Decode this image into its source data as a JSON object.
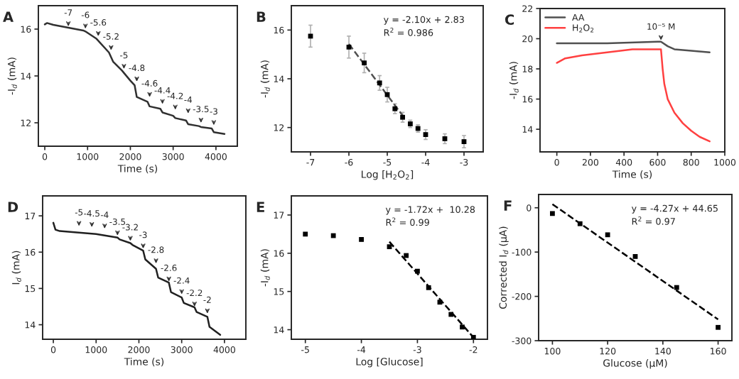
{
  "chart_data": [
    {
      "type": "line",
      "title": "A",
      "xlabel": "Time (s)",
      "ylabel": "-I$_{d}$ (mA)",
      "xlim": [
        -150,
        4500
      ],
      "ylim": [
        11,
        17
      ],
      "xticks": [
        0,
        1000,
        2000,
        3000,
        4000
      ],
      "yticks": [
        12,
        14,
        16
      ],
      "series": [
        {
          "color": "#303030",
          "x": [
            0,
            50,
            200,
            900,
            950,
            1200,
            1500,
            1600,
            1800,
            2000,
            2100,
            2150,
            2400,
            2450,
            2700,
            2750,
            3000,
            3050,
            3300,
            3350,
            3600,
            3650,
            3900,
            3950,
            4200
          ],
          "values": [
            16.2,
            16.26,
            16.18,
            15.94,
            15.9,
            15.6,
            15.0,
            14.6,
            14.24,
            13.8,
            13.6,
            13.1,
            12.9,
            12.7,
            12.6,
            12.44,
            12.3,
            12.2,
            12.1,
            11.94,
            11.86,
            11.82,
            11.76,
            11.6,
            11.52
          ]
        }
      ],
      "annotations": [
        {
          "text": "-7",
          "x": 550,
          "y": 16.12
        },
        {
          "text": "-6",
          "x": 950,
          "y": 16.02
        },
        {
          "text": "-5.6",
          "x": 1250,
          "y": 15.7
        },
        {
          "text": "-5.2",
          "x": 1550,
          "y": 15.1
        },
        {
          "text": "-5",
          "x": 1850,
          "y": 14.3
        },
        {
          "text": "-4.8",
          "x": 2150,
          "y": 13.76
        },
        {
          "text": "-4.6",
          "x": 2450,
          "y": 13.1
        },
        {
          "text": "-4.4",
          "x": 2750,
          "y": 12.8
        },
        {
          "text": "-4.2",
          "x": 3050,
          "y": 12.56
        },
        {
          "text": "-4",
          "x": 3350,
          "y": 12.4
        },
        {
          "text": "-3.5",
          "x": 3650,
          "y": 12.0
        },
        {
          "text": "-3",
          "x": 3950,
          "y": 11.9
        }
      ]
    },
    {
      "type": "scatter",
      "title": "B",
      "xlabel": "Log [H$_{2}$O$_{2}$]",
      "ylabel": "-I$_{d}$ (mA)",
      "xlim": [
        -7.5,
        -2.5
      ],
      "ylim": [
        11,
        17
      ],
      "xticks": [
        -7,
        -6,
        -5,
        -4,
        -3
      ],
      "yticks": [
        12,
        14,
        16
      ],
      "series": [
        {
          "color": "#000000",
          "marker": "square",
          "x": [
            -7,
            -6,
            -5.6,
            -5.2,
            -5,
            -4.8,
            -4.6,
            -4.4,
            -4.2,
            -4,
            -3.5,
            -3
          ],
          "values": [
            15.75,
            15.3,
            14.65,
            13.83,
            13.35,
            12.77,
            12.42,
            12.15,
            11.96,
            11.71,
            11.54,
            11.42
          ],
          "errors": [
            0.45,
            0.45,
            0.4,
            0.3,
            0.3,
            0.2,
            0.2,
            0.15,
            0.15,
            0.2,
            0.2,
            0.25
          ]
        },
        {
          "type": "line",
          "color": "#505050",
          "line_style": "dashed",
          "x": [
            -6,
            -4.6
          ],
          "values": [
            15.43,
            12.49
          ]
        }
      ],
      "annotations": [
        "y = -2.10x + 2.83",
        "R$^{2}$ = 0.986"
      ]
    },
    {
      "type": "line",
      "title": "C",
      "xlabel": "Time (s)",
      "ylabel": "-I$_{d}$ (mA)",
      "xlim": [
        -100,
        1000
      ],
      "ylim": [
        12.5,
        22
      ],
      "xticks": [
        0,
        200,
        400,
        600,
        800,
        1000
      ],
      "yticks": [
        14,
        16,
        18,
        20,
        22
      ],
      "legend": "top left",
      "series": [
        {
          "name": "AA",
          "color": "#505050",
          "x": [
            0,
            300,
            600,
            620,
            660,
            700,
            800,
            910
          ],
          "values": [
            19.7,
            19.7,
            19.8,
            19.8,
            19.5,
            19.3,
            19.2,
            19.1
          ]
        },
        {
          "name": "H$_{2}$O$_{2}$",
          "color": "#ff4040",
          "x": [
            0,
            50,
            150,
            300,
            450,
            620,
            630,
            640,
            660,
            700,
            750,
            800,
            850,
            910
          ],
          "values": [
            18.4,
            18.7,
            18.9,
            19.1,
            19.3,
            19.3,
            18.0,
            17.0,
            16.0,
            15.1,
            14.4,
            13.9,
            13.5,
            13.2
          ]
        }
      ],
      "annotations": [
        {
          "text": "10⁻⁵ M",
          "x": 620,
          "y": 19.9
        }
      ]
    },
    {
      "type": "line",
      "title": "D",
      "xlabel": "Time (s)",
      "ylabel": "I$_{d}$ (mA)",
      "xlim": [
        -250,
        4500
      ],
      "ylim": [
        13.6,
        17.55
      ],
      "xticks": [
        0,
        1000,
        2000,
        3000,
        4000
      ],
      "yticks": [
        14,
        15,
        16,
        17
      ],
      "series": [
        {
          "color": "#202020",
          "x": [
            0,
            50,
            150,
            1000,
            1500,
            1550,
            1800,
            1850,
            2100,
            2150,
            2400,
            2450,
            2700,
            2750,
            3000,
            3050,
            3300,
            3350,
            3600,
            3650,
            3900
          ],
          "values": [
            16.81,
            16.62,
            16.58,
            16.5,
            16.4,
            16.35,
            16.25,
            16.2,
            16.04,
            15.8,
            15.54,
            15.3,
            15.16,
            14.9,
            14.75,
            14.6,
            14.48,
            14.35,
            14.22,
            13.94,
            13.72
          ]
        }
      ],
      "annotations": [
        {
          "text": "-5",
          "x": 600,
          "y": 16.72
        },
        {
          "text": "-4.5",
          "x": 900,
          "y": 16.69
        },
        {
          "text": "-4",
          "x": 1200,
          "y": 16.65
        },
        {
          "text": "-3.5",
          "x": 1500,
          "y": 16.46
        },
        {
          "text": "-3.2",
          "x": 1800,
          "y": 16.31
        },
        {
          "text": "-3",
          "x": 2100,
          "y": 16.1
        },
        {
          "text": "-2.8",
          "x": 2400,
          "y": 15.69
        },
        {
          "text": "-2.6",
          "x": 2700,
          "y": 15.19
        },
        {
          "text": "-2.4",
          "x": 3000,
          "y": 14.84
        },
        {
          "text": "-2.2",
          "x": 3300,
          "y": 14.5
        },
        {
          "text": "-2",
          "x": 3600,
          "y": 14.31
        }
      ]
    },
    {
      "type": "scatter",
      "title": "E",
      "xlabel": "Log [Glucose]",
      "ylabel": "-I$_{d}$ (mA)",
      "xlim": [
        -5.25,
        -1.75
      ],
      "ylim": [
        13.75,
        17.5
      ],
      "xticks": [
        -5,
        -4,
        -3,
        -2
      ],
      "yticks": [
        14,
        15,
        16,
        17
      ],
      "series": [
        {
          "color": "#000000",
          "marker": "square",
          "x": [
            -5,
            -4.5,
            -4,
            -3.5,
            -3.2,
            -3,
            -2.8,
            -2.6,
            -2.4,
            -2.2,
            -2
          ],
          "values": [
            16.5,
            16.46,
            16.36,
            16.17,
            15.94,
            15.53,
            15.1,
            14.72,
            14.4,
            14.07,
            13.8
          ]
        },
        {
          "type": "line",
          "color": "#000000",
          "line_style": "dashed",
          "x": [
            -3.5,
            -2
          ],
          "values": [
            16.3,
            13.8
          ]
        }
      ],
      "annotations": [
        "y = -1.72x +  10.28",
        "R$^{2}$ = 0.99"
      ]
    },
    {
      "type": "scatter",
      "title": "F",
      "xlabel": "Glucose (μM)",
      "ylabel": "Corrected I$_{d}$ (μA)",
      "xlim": [
        95,
        165
      ],
      "ylim": [
        -300,
        30
      ],
      "xticks": [
        100,
        120,
        140,
        160
      ],
      "yticks": [
        0,
        -100,
        -200,
        -300
      ],
      "series": [
        {
          "color": "#000000",
          "marker": "square",
          "x": [
            100,
            110,
            120,
            130,
            145,
            160
          ],
          "values": [
            -13,
            -36,
            -61,
            -110,
            -180,
            -270
          ]
        },
        {
          "type": "line",
          "color": "#000000",
          "line_style": "dashed",
          "x": [
            100,
            160
          ],
          "values": [
            8,
            -252
          ]
        }
      ],
      "annotations": [
        "y = -4.27x + 44.65",
        "R$^{2}$ = 0.97"
      ]
    }
  ]
}
